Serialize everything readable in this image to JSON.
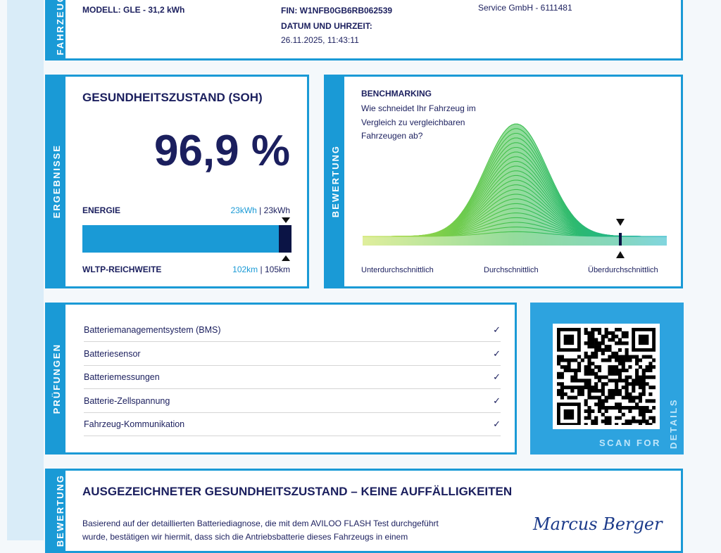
{
  "vehicle": {
    "side_label": "FAHRZEUG",
    "model": "MODELL: GLE - 31,2 kWh",
    "fin": "FIN: W1NFB0GB6RB062539",
    "date_label": "DATUM UND UHRZEIT:",
    "date_value": "26.11.2025, 11:43:11",
    "service": "Service GmbH - 6111481"
  },
  "results": {
    "side_label": "ERGEBNISSE",
    "title": "GESUNDHEITSZUSTAND (SOH)",
    "soh": "96,9 %",
    "energy_label": "ENERGIE",
    "energy_current": "23kWh",
    "energy_sep": " | ",
    "energy_nominal": "23kWh",
    "range_label": "WLTP-REICHWEITE",
    "range_current": "102km",
    "range_sep": " | ",
    "range_nominal": "105km",
    "fill_percent": 96.9
  },
  "rating": {
    "side_label": "BEWERTUNG",
    "title": "BENCHMARKING",
    "question": "Wie schneidet Ihr Fahrzeug im Vergleich zu vergleichbaren Fahrzeugen ab?",
    "labels": [
      "Unterdurchschnittlich",
      "Durchschnittlich",
      "Überdurchschnittlich"
    ]
  },
  "checks": {
    "side_label": "PRÜFUNGEN",
    "items": [
      "Batteriemanagementsystem (BMS)",
      "Batteriesensor",
      "Batteriemessungen",
      "Batterie-Zellspannung",
      "Fahrzeug-Kommunikation"
    ],
    "check_icon": "✓"
  },
  "qr": {
    "caption": "SCAN FOR",
    "caption_vertical": "DETAILS"
  },
  "summary": {
    "side_label": "BEWERTUNG",
    "title": "AUSGEZEICHNETER GESUNDHEITSZUSTAND – KEINE AUFFÄLLIGKEITEN",
    "text_line1": "Basierend auf der detaillierten Batteriediagnose, die mit dem AVILOO FLASH Test durchgeführt",
    "text_line2": "wurde, bestätigen wir hiermit, dass sich die Antriebsbatterie dieses Fahrzeugs in einem",
    "signature": "Marcus Berger"
  },
  "colors": {
    "accent": "#1a9ad6",
    "navy": "#1b1f5e"
  }
}
